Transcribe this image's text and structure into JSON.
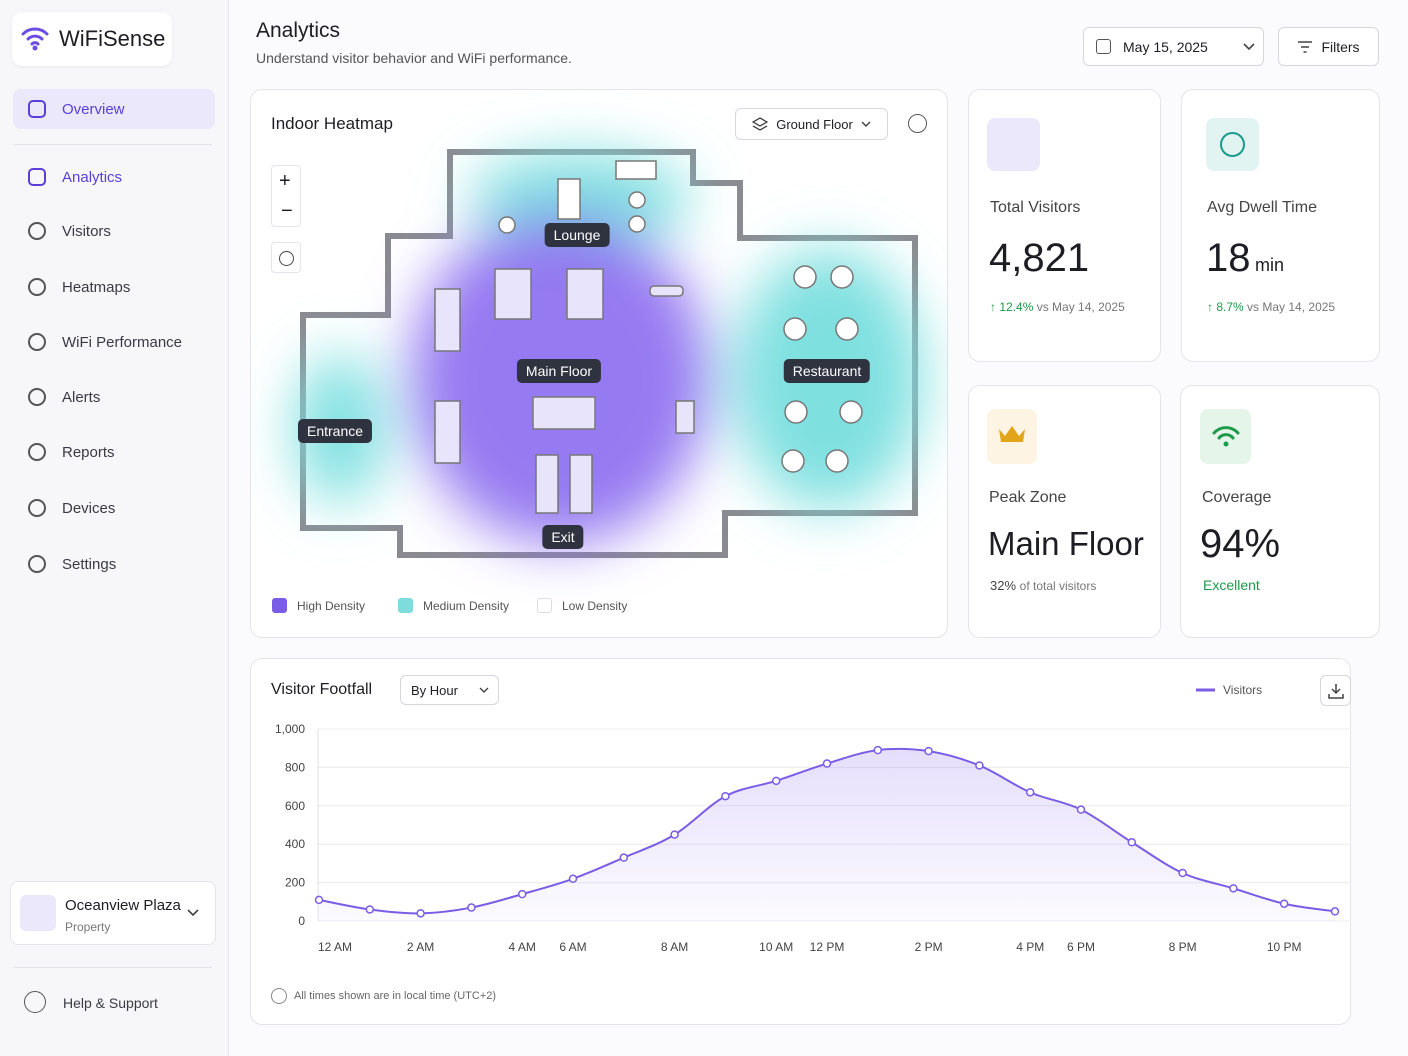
{
  "sidebar": {
    "brand": "WiFiSense",
    "nav": [
      "Overview",
      "Analytics",
      "Visitors",
      "Heatmaps",
      "WiFi Performance",
      "Alerts",
      "Reports",
      "Devices",
      "Settings"
    ],
    "property": {
      "name": "Oceanview Plaza",
      "type": "Property"
    },
    "help": "Help & Support"
  },
  "header": {
    "title": "Analytics",
    "subtitle": "Understand visitor behavior and WiFi performance.",
    "date": "May 15, 2025",
    "filters": "Filters"
  },
  "heatmap": {
    "title": "Indoor Heatmap",
    "floor": "Ground Floor",
    "zones": [
      "Lounge",
      "Main Floor",
      "Restaurant",
      "Entrance",
      "Exit"
    ],
    "legend": [
      "High Density",
      "Medium Density",
      "Low Density"
    ]
  },
  "stats": [
    {
      "label": "Total Visitors",
      "value": "4,821",
      "change": "12.4%",
      "compare": "vs May 14, 2025"
    },
    {
      "label": "Avg Dwell Time",
      "value": "18",
      "unit": "min",
      "change": "8.7%",
      "compare": "vs May 14, 2025"
    },
    {
      "label": "Peak Zone",
      "value": "Main Floor",
      "note": "32%",
      "note_text": "of total visitors"
    },
    {
      "label": "Coverage",
      "value": "94%",
      "note": "Excellent"
    }
  ],
  "chart_data": {
    "type": "line",
    "title": "Visitor Footfall",
    "grouping": "By Hour",
    "categories": [
      "12 AM",
      null,
      "2 AM",
      null,
      "4 AM",
      "6 AM",
      null,
      "8 AM",
      null,
      "10 AM",
      "12 PM",
      null,
      "2 PM",
      null,
      "4 PM",
      "6 PM",
      null,
      "8 PM",
      null,
      "10 PM",
      null
    ],
    "series": [
      {
        "name": "Visitors",
        "color": "#7b5ce6",
        "values": [
          110,
          60,
          40,
          70,
          140,
          220,
          330,
          450,
          650,
          730,
          820,
          890,
          885,
          810,
          670,
          580,
          410,
          250,
          170,
          90,
          50
        ]
      }
    ],
    "ylim": [
      0,
      1000
    ],
    "yticks": [
      0,
      200,
      400,
      600,
      800,
      {
        "value": 1000,
        "label": "1,000"
      }
    ],
    "grid": true,
    "note": "All times shown are in local time (UTC+2)"
  }
}
